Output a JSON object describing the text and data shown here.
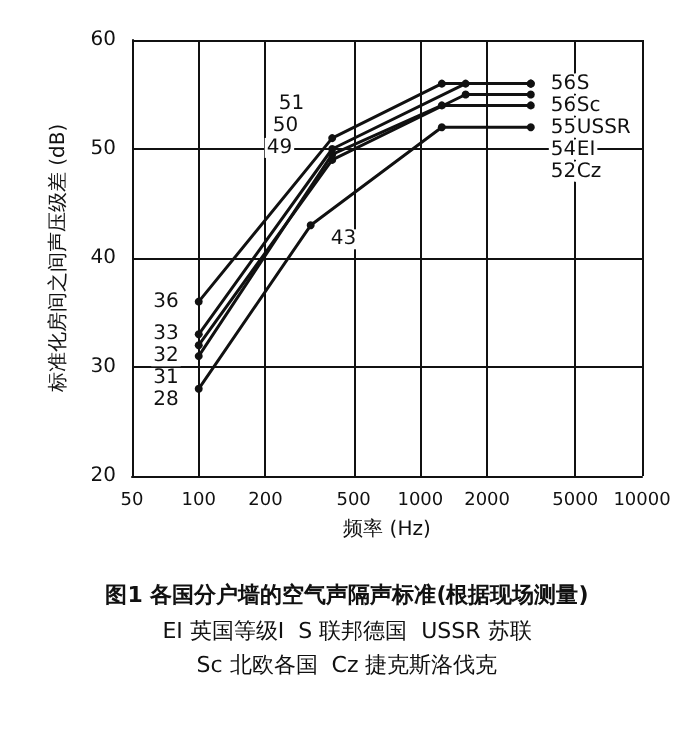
{
  "chart_data": {
    "type": "line",
    "title": "图1 各国分户墙的空气声隔声标准(根据现场测量)",
    "xlabel": "频率 (Hz)",
    "ylabel": "标准化房间之间声压级差 (dB)",
    "annotations": [
      "EI 英国等级I  S 联邦德国  USSR 苏联",
      "Sc 北欧各国  Cz 捷克斯洛伐克"
    ],
    "series": [
      {
        "name": "S",
        "color": "#111111",
        "x": [
          100,
          400,
          1250,
          3150
        ],
        "values": [
          36,
          51,
          56,
          56
        ],
        "value_labels": [
          "36",
          "51",
          null,
          "56"
        ]
      },
      {
        "name": "Sc",
        "color": "#111111",
        "x": [
          100,
          400,
          1600,
          3150
        ],
        "values": [
          33,
          50,
          56,
          56
        ],
        "value_labels": [
          "33",
          "50",
          null,
          "56"
        ]
      },
      {
        "name": "USSR",
        "color": "#111111",
        "x": [
          100,
          400,
          1600,
          3150
        ],
        "values": [
          32,
          49,
          55,
          55
        ],
        "value_labels": [
          "32",
          "49",
          null,
          "55"
        ]
      },
      {
        "name": "EI",
        "color": "#111111",
        "x": [
          100,
          400,
          1250,
          3150
        ],
        "values": [
          31,
          49.5,
          54,
          54
        ],
        "value_labels": [
          "31",
          null,
          null,
          "54"
        ]
      },
      {
        "name": "Cz",
        "color": "#111111",
        "x": [
          100,
          320,
          1250,
          3150
        ],
        "values": [
          28,
          43,
          52,
          52
        ],
        "value_labels": [
          "28",
          "43",
          null,
          "52"
        ]
      }
    ],
    "log": "x",
    "xlim": [
      50,
      10000
    ],
    "xticks": [
      50,
      100,
      200,
      500,
      1000,
      2000,
      5000,
      10000
    ],
    "ylim": [
      20,
      60
    ],
    "yticks": [
      20,
      30,
      40,
      50,
      60
    ],
    "grid": true,
    "legend": false,
    "marker": "circle",
    "line_style": "solid"
  }
}
